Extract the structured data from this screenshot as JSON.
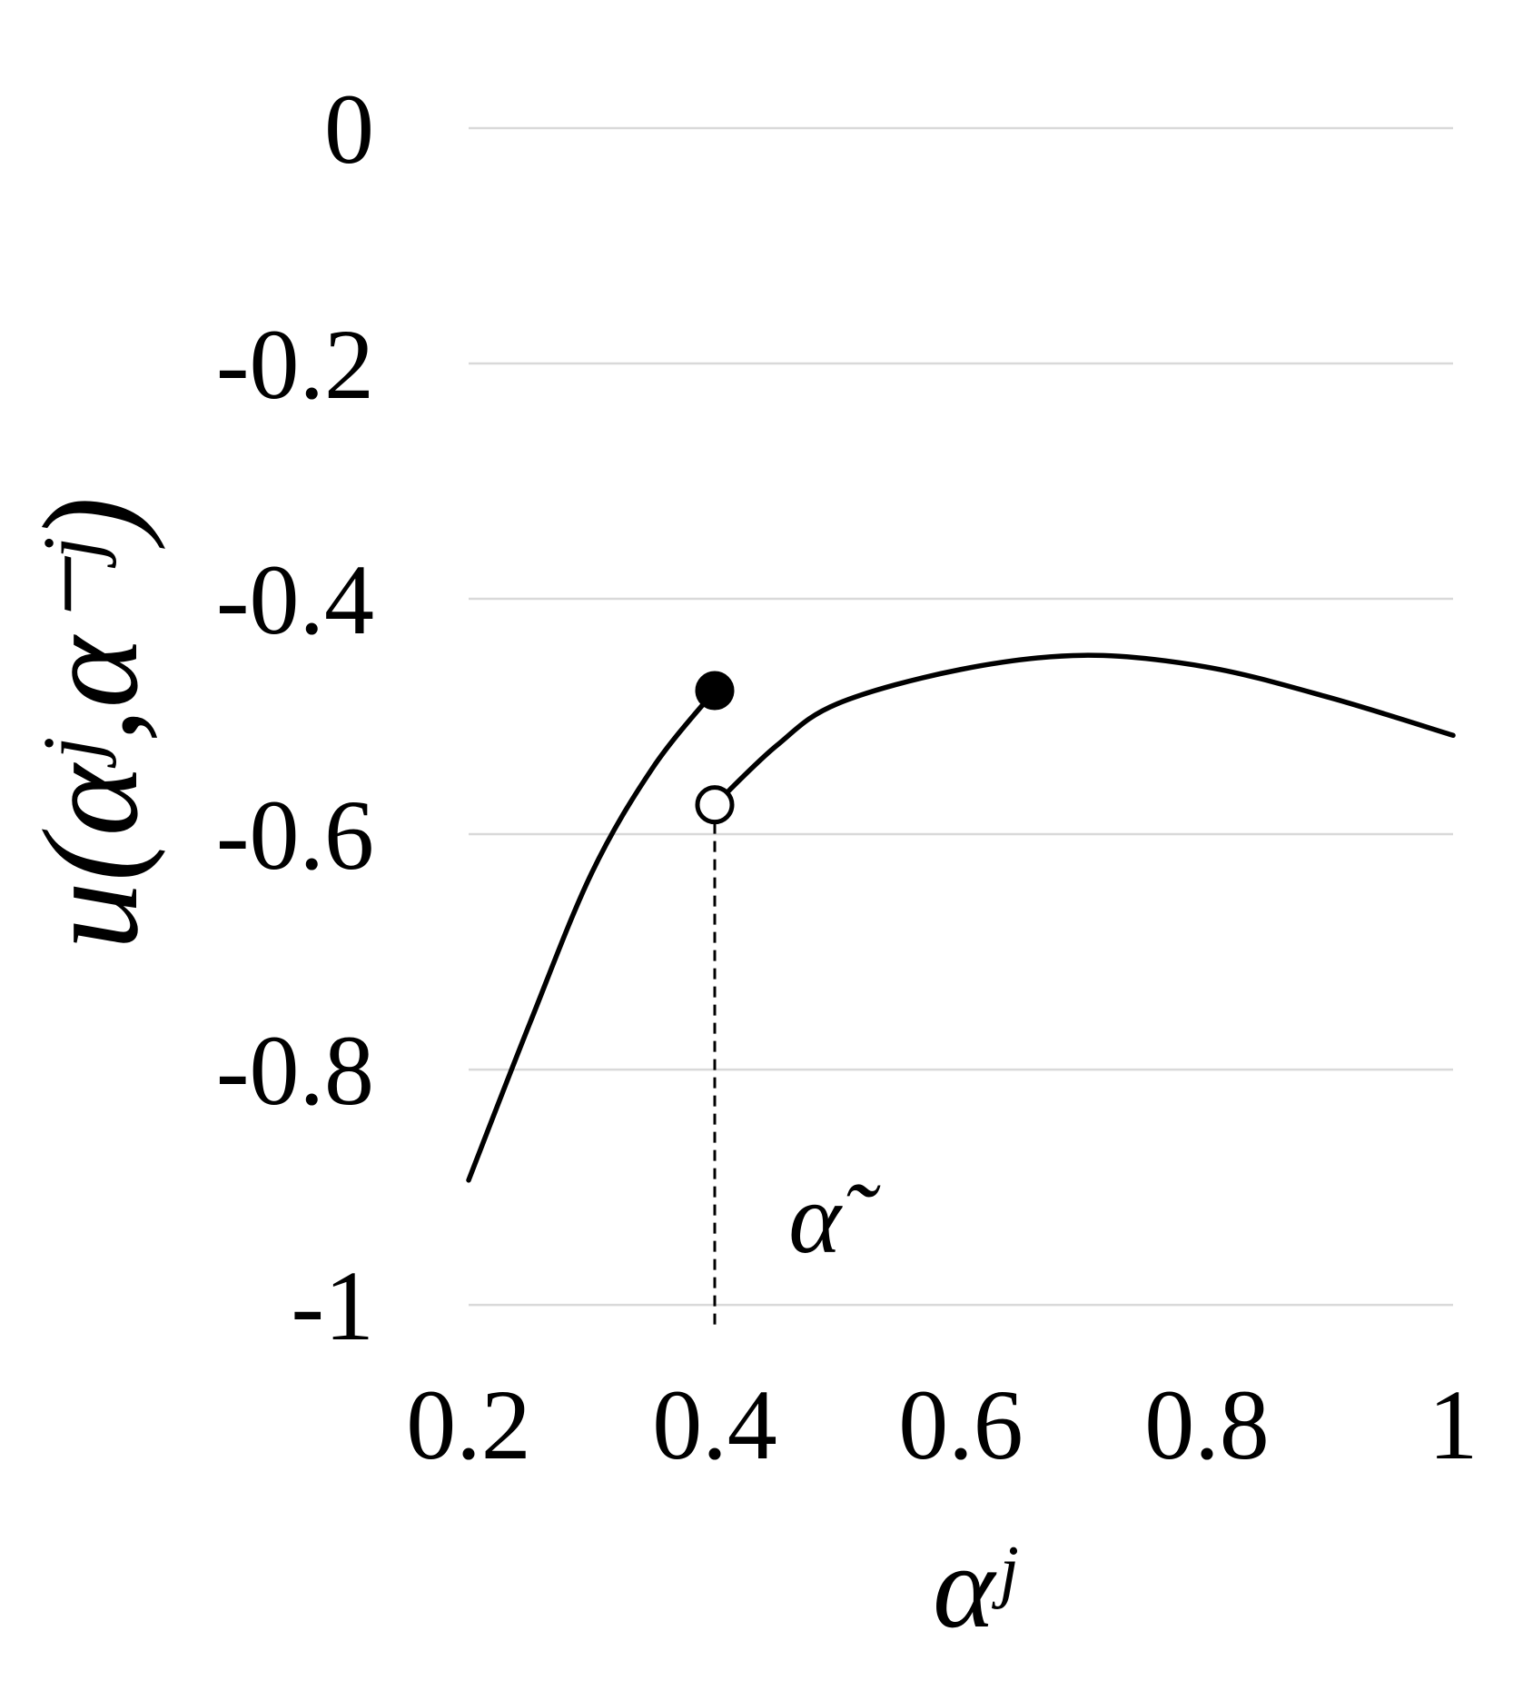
{
  "chart_data": {
    "type": "line",
    "x_label": "αʲ",
    "y_label": "u(αʲ,α⁻ʲ)",
    "xlim": [
      0.2,
      1
    ],
    "ylim": [
      -1.02,
      0
    ],
    "xticks": [
      0.2,
      0.4,
      0.6,
      0.8,
      1
    ],
    "yticks": [
      0,
      -0.2,
      -0.4,
      -0.6,
      -0.8,
      -1
    ],
    "grid": true,
    "grid_color": "#d9d9d9",
    "series": [
      {
        "color": "#000000",
        "x": [
          0.2,
          0.25,
          0.3,
          0.35,
          0.4
        ],
        "values": [
          -0.894,
          -0.76,
          -0.633,
          -0.543,
          -0.478
        ]
      },
      {
        "color": "#000000",
        "x": [
          0.4,
          0.45,
          0.5,
          0.6,
          0.7,
          0.8,
          0.9,
          1
        ],
        "values": [
          -0.575,
          -0.525,
          -0.489,
          -0.46,
          -0.448,
          -0.458,
          -0.484,
          -0.516
        ]
      }
    ],
    "dashed_line": {
      "color": "#000000",
      "x": [
        0.4,
        0.4
      ],
      "values": [
        -0.575,
        -1.02
      ]
    },
    "points": [
      {
        "x": 0.4,
        "y": -0.478,
        "fill": "#000000"
      },
      {
        "x": 0.4,
        "y": -0.575,
        "fill": "#ffffff"
      }
    ],
    "annotation": {
      "text": "α̃",
      "x": 0.46,
      "y": -0.955
    }
  }
}
